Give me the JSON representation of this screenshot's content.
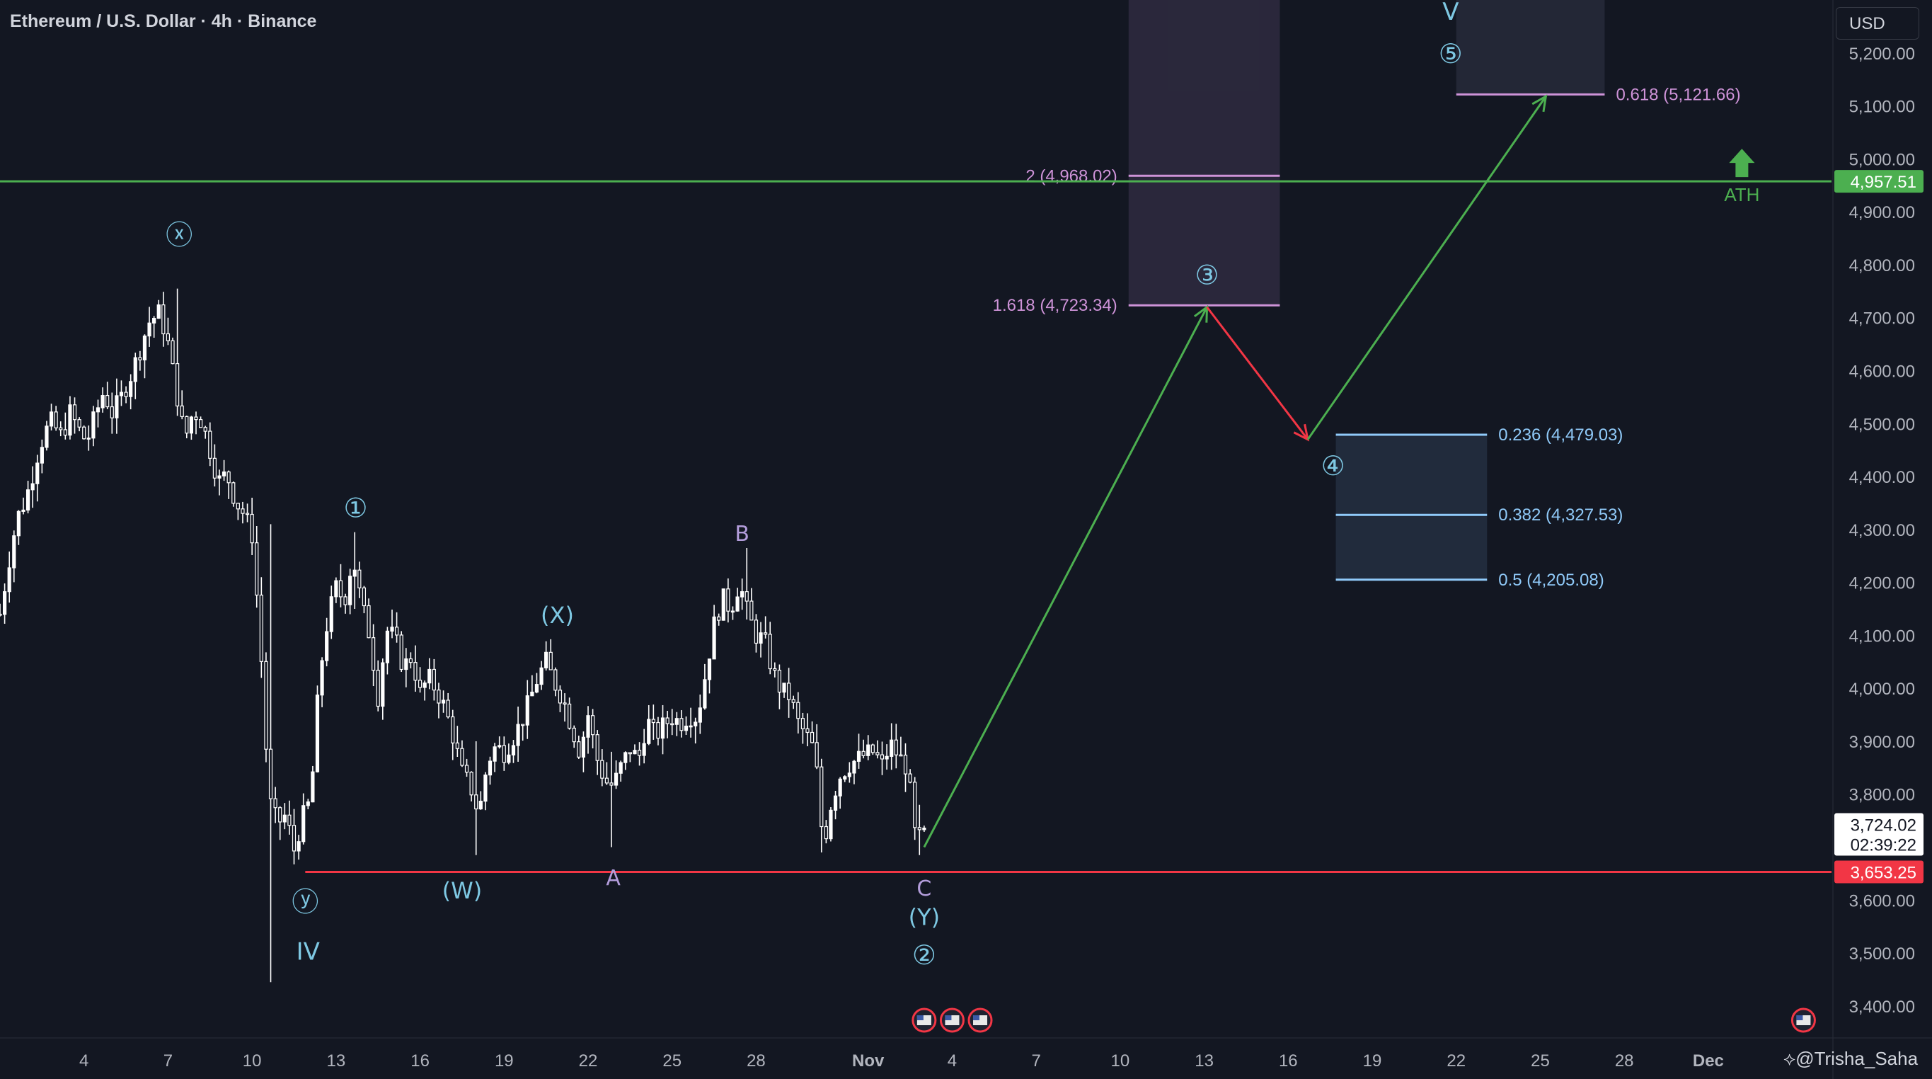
{
  "header": {
    "title": "Ethereum / U.S. Dollar · 4h · Binance",
    "currency": "USD"
  },
  "watermark": "@Trisha_Saha",
  "colors": {
    "background": "#131722",
    "text": "#d1d4dc",
    "axis_text": "#b2b5be",
    "wave_blue": "#7ec8e3",
    "wave_purple": "#b39ddb",
    "fib_purple": "#ce93d8",
    "fib_blue": "#90caf9",
    "ath_green": "#4caf50",
    "support_red": "#f23645",
    "projection_green": "#4caf50",
    "projection_red": "#f23645"
  },
  "chart_data": {
    "type": "candlestick",
    "title": "Ethereum / U.S. Dollar · 4h · Binance",
    "y_axis": {
      "ticks": [
        "5,200.00",
        "5,100.00",
        "5,000.00",
        "4,900.00",
        "4,800.00",
        "4,700.00",
        "4,600.00",
        "4,500.00",
        "4,400.00",
        "4,300.00",
        "4,200.00",
        "4,100.00",
        "4,000.00",
        "3,900.00",
        "3,800.00",
        "3,700.00",
        "3,600.00",
        "3,500.00",
        "3,400.00"
      ],
      "tick_values": [
        5200,
        5100,
        5000,
        4900,
        4800,
        4700,
        4600,
        4500,
        4400,
        4300,
        4200,
        4100,
        4000,
        3900,
        3800,
        3700,
        3600,
        3500,
        3400
      ],
      "range": [
        3345,
        5300
      ]
    },
    "x_axis": {
      "labels": [
        {
          "text": "4",
          "d": 4
        },
        {
          "text": "7",
          "d": 7
        },
        {
          "text": "10",
          "d": 10
        },
        {
          "text": "13",
          "d": 13
        },
        {
          "text": "16",
          "d": 16
        },
        {
          "text": "19",
          "d": 19
        },
        {
          "text": "22",
          "d": 22
        },
        {
          "text": "25",
          "d": 25
        },
        {
          "text": "28",
          "d": 28
        },
        {
          "text": "Nov",
          "d": 32,
          "bold": true
        },
        {
          "text": "4",
          "d": 35
        },
        {
          "text": "7",
          "d": 38
        },
        {
          "text": "10",
          "d": 41
        },
        {
          "text": "13",
          "d": 44
        },
        {
          "text": "16",
          "d": 47
        },
        {
          "text": "19",
          "d": 50
        },
        {
          "text": "22",
          "d": 53
        },
        {
          "text": "25",
          "d": 56
        },
        {
          "text": "28",
          "d": 59
        },
        {
          "text": "Dec",
          "d": 62,
          "bold": true
        }
      ],
      "range_days": [
        1.0,
        66.4
      ],
      "note_day_index": "days counted from Oct 1 = 1"
    },
    "price_path": [
      [
        1.0,
        4140
      ],
      [
        1.3,
        4235
      ],
      [
        1.6,
        4320
      ],
      [
        1.9,
        4355
      ],
      [
        2.1,
        4390
      ],
      [
        2.4,
        4455
      ],
      [
        2.8,
        4505
      ],
      [
        3.2,
        4475
      ],
      [
        3.5,
        4520
      ],
      [
        3.8,
        4490
      ],
      [
        4.1,
        4465
      ],
      [
        4.4,
        4515
      ],
      [
        4.7,
        4560
      ],
      [
        5.0,
        4520
      ],
      [
        5.3,
        4545
      ],
      [
        5.7,
        4595
      ],
      [
        6.0,
        4640
      ],
      [
        6.3,
        4690
      ],
      [
        6.7,
        4710
      ],
      [
        7.0,
        4650
      ],
      [
        7.3,
        4560
      ],
      [
        7.6,
        4470
      ],
      [
        7.9,
        4525
      ],
      [
        8.2,
        4505
      ],
      [
        8.5,
        4450
      ],
      [
        8.8,
        4390
      ],
      [
        9.1,
        4405
      ],
      [
        9.4,
        4355
      ],
      [
        9.7,
        4330
      ],
      [
        10.0,
        4290
      ],
      [
        10.3,
        4085
      ],
      [
        10.6,
        3790
      ],
      [
        10.9,
        3745
      ],
      [
        11.2,
        3760
      ],
      [
        11.5,
        3695
      ],
      [
        11.8,
        3755
      ],
      [
        12.1,
        3790
      ],
      [
        12.4,
        4020
      ],
      [
        12.7,
        4130
      ],
      [
        13.0,
        4190
      ],
      [
        13.3,
        4165
      ],
      [
        13.6,
        4250
      ],
      [
        13.9,
        4160
      ],
      [
        14.2,
        4100
      ],
      [
        14.5,
        3985
      ],
      [
        14.8,
        4110
      ],
      [
        15.1,
        4095
      ],
      [
        15.4,
        4040
      ],
      [
        15.7,
        4060
      ],
      [
        16.0,
        3990
      ],
      [
        16.3,
        4020
      ],
      [
        16.6,
        3995
      ],
      [
        16.9,
        3960
      ],
      [
        17.2,
        3905
      ],
      [
        17.5,
        3840
      ],
      [
        17.8,
        3815
      ],
      [
        18.1,
        3760
      ],
      [
        18.4,
        3860
      ],
      [
        18.7,
        3890
      ],
      [
        19.0,
        3880
      ],
      [
        19.3,
        3905
      ],
      [
        19.6,
        3935
      ],
      [
        19.9,
        3975
      ],
      [
        20.2,
        4020
      ],
      [
        20.5,
        4050
      ],
      [
        20.8,
        4010
      ],
      [
        21.1,
        3980
      ],
      [
        21.4,
        3930
      ],
      [
        21.7,
        3880
      ],
      [
        22.0,
        3950
      ],
      [
        22.3,
        3870
      ],
      [
        22.6,
        3825
      ],
      [
        22.9,
        3815
      ],
      [
        23.2,
        3855
      ],
      [
        23.5,
        3885
      ],
      [
        23.8,
        3865
      ],
      [
        24.1,
        3940
      ],
      [
        24.4,
        3910
      ],
      [
        24.7,
        3930
      ],
      [
        25.0,
        3945
      ],
      [
        25.3,
        3935
      ],
      [
        25.6,
        3950
      ],
      [
        25.9,
        3945
      ],
      [
        26.2,
        4030
      ],
      [
        26.5,
        4120
      ],
      [
        26.8,
        4170
      ],
      [
        27.1,
        4150
      ],
      [
        27.4,
        4200
      ],
      [
        27.7,
        4140
      ],
      [
        28.0,
        4100
      ],
      [
        28.3,
        4090
      ],
      [
        28.6,
        4030
      ],
      [
        28.9,
        3995
      ],
      [
        29.2,
        3985
      ],
      [
        29.5,
        3935
      ],
      [
        29.8,
        3910
      ],
      [
        30.1,
        3880
      ],
      [
        30.4,
        3700
      ],
      [
        30.7,
        3790
      ],
      [
        31.0,
        3835
      ],
      [
        31.3,
        3855
      ],
      [
        31.6,
        3865
      ],
      [
        31.9,
        3875
      ],
      [
        32.2,
        3880
      ],
      [
        32.5,
        3855
      ],
      [
        32.8,
        3895
      ],
      [
        33.1,
        3870
      ],
      [
        33.4,
        3850
      ],
      [
        33.7,
        3710
      ],
      [
        34.0,
        3724
      ]
    ],
    "wick_extremes": [
      {
        "d": 7.4,
        "high": 4755,
        "low": 4560
      },
      {
        "d": 10.7,
        "high": 4310,
        "low": 3445
      },
      {
        "d": 13.7,
        "high": 4295,
        "low": 4150
      },
      {
        "d": 18.0,
        "high": 3900,
        "low": 3685
      },
      {
        "d": 22.9,
        "high": 3880,
        "low": 3700
      },
      {
        "d": 27.7,
        "high": 4265,
        "low": 4130
      },
      {
        "d": 30.3,
        "high": 3860,
        "low": 3690
      },
      {
        "d": 33.9,
        "high": 3780,
        "low": 3685
      }
    ],
    "horizontal_lines": [
      {
        "name": "ath-line",
        "price": 4957.51,
        "color": "#4caf50",
        "label": "4,957.51"
      },
      {
        "name": "support-line",
        "price": 3653.25,
        "color": "#f23645",
        "label": "3,653.25",
        "start_day": 11.9
      }
    ],
    "current_price": {
      "price": "3,724.02",
      "countdown": "02:39:22",
      "value": 3724.02
    },
    "ath_marker": {
      "text": "ATH",
      "d": 63.2,
      "price": 4957.51
    },
    "fib_zones": [
      {
        "name": "wave-3-zone",
        "d_from": 41.3,
        "d_to": 46.7,
        "price_top": 5300,
        "price_bottom": 4723.34,
        "fill": "rgba(70,60,90,0.45)",
        "levels": [
          {
            "label": "2 (4,968.02)",
            "price": 4968.02
          },
          {
            "label": "1.618 (4,723.34)",
            "price": 4723.34
          }
        ],
        "color": "#ce93d8",
        "label_side": "left"
      },
      {
        "name": "wave-4-zone",
        "d_from": 48.7,
        "d_to": 54.1,
        "price_top": 4479.03,
        "price_bottom": 4205.08,
        "fill": "rgba(60,80,110,0.35)",
        "levels": [
          {
            "label": "0.236 (4,479.03)",
            "price": 4479.03
          },
          {
            "label": "0.382 (4,327.53)",
            "price": 4327.53
          },
          {
            "label": "0.5 (4,205.08)",
            "price": 4205.08
          }
        ],
        "color": "#90caf9",
        "label_side": "right"
      },
      {
        "name": "wave-5-zone",
        "d_from": 53.0,
        "d_to": 58.3,
        "price_top": 5300,
        "price_bottom": 5121.66,
        "fill": "rgba(55,60,80,0.45)",
        "levels": [
          {
            "label": "0.618 (5,121.66)",
            "price": 5121.66
          }
        ],
        "color": "#ce93d8",
        "label_side": "right"
      }
    ],
    "projection_path": [
      {
        "d": 34.0,
        "price": 3700,
        "color": "#4caf50"
      },
      {
        "d": 44.1,
        "price": 4720,
        "color": "#f23645"
      },
      {
        "d": 47.7,
        "price": 4470,
        "color": "#4caf50"
      },
      {
        "d": 56.2,
        "price": 5118
      }
    ],
    "wave_labels": [
      {
        "text": "ⓧ",
        "d": 7.4,
        "price": 4853,
        "color": "#7ec8e3",
        "size": 38
      },
      {
        "text": "ⓨ",
        "d": 11.9,
        "price": 3593,
        "color": "#7ec8e3",
        "size": 38
      },
      {
        "text": "IV",
        "d": 12.0,
        "price": 3500,
        "color": "#7ec8e3",
        "size": 34
      },
      {
        "text": "①",
        "d": 13.7,
        "price": 4337,
        "color": "#7ec8e3",
        "size": 38
      },
      {
        "text": "(W)",
        "d": 17.5,
        "price": 3615,
        "color": "#7ec8e3",
        "size": 32
      },
      {
        "text": "(X)",
        "d": 20.9,
        "price": 4135,
        "color": "#7ec8e3",
        "size": 32
      },
      {
        "text": "A",
        "d": 22.9,
        "price": 3640,
        "color": "#b39ddb",
        "size": 30
      },
      {
        "text": "B",
        "d": 27.5,
        "price": 4290,
        "color": "#b39ddb",
        "size": 30
      },
      {
        "text": "C",
        "d": 34.0,
        "price": 3620,
        "color": "#b39ddb",
        "size": 30
      },
      {
        "text": "(Y)",
        "d": 34.0,
        "price": 3565,
        "color": "#7ec8e3",
        "size": 32
      },
      {
        "text": "②",
        "d": 34.0,
        "price": 3493,
        "color": "#7ec8e3",
        "size": 38
      },
      {
        "text": "③",
        "d": 44.1,
        "price": 4777,
        "color": "#7ec8e3",
        "size": 38
      },
      {
        "text": "④",
        "d": 48.6,
        "price": 4417,
        "color": "#7ec8e3",
        "size": 38
      },
      {
        "text": "⑤",
        "d": 52.8,
        "price": 5195,
        "color": "#7ec8e3",
        "size": 38
      },
      {
        "text": "V",
        "d": 52.8,
        "price": 5275,
        "color": "#7ec8e3",
        "size": 34
      }
    ],
    "event_flags": [
      {
        "d": 34.0
      },
      {
        "d": 35.0
      },
      {
        "d": 36.0
      },
      {
        "d": 65.4
      }
    ]
  }
}
